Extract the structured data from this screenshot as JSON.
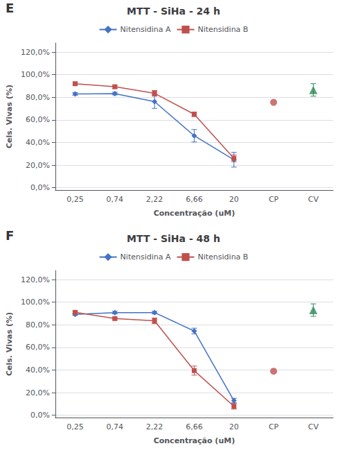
{
  "chart_data": [
    {
      "type": "line",
      "title": "MTT - SiHa - 24 h",
      "annotations": [
        "E"
      ],
      "categories": [
        "0,25",
        "0,74",
        "2,22",
        "6,66",
        "20",
        "CP",
        "CV"
      ],
      "xlabel": "Concentração (uM)",
      "ylabel": "Cels. Vivas (%)",
      "series": [
        {
          "name": "Nitensidina A",
          "color": "#4472C4",
          "marker": "diamond",
          "values": [
            0.83,
            0.833,
            0.762,
            0.46,
            0.248,
            null,
            null
          ],
          "errors": [
            0.012,
            0.012,
            0.06,
            0.055,
            0.065,
            null,
            null
          ]
        },
        {
          "name": "Nitensidina B",
          "color": "#C0504D",
          "marker": "square",
          "values": [
            0.92,
            0.893,
            0.835,
            0.65,
            0.26,
            null,
            null
          ],
          "errors": [
            0.012,
            0.015,
            0.025,
            0.02,
            0.03,
            null,
            null
          ]
        },
        {
          "type": "scatter",
          "color": "#C0504D",
          "marker": "circle",
          "values": [
            null,
            null,
            null,
            null,
            null,
            0.755,
            null
          ]
        },
        {
          "type": "scatter",
          "color": "#2E8B57",
          "marker": "triangle",
          "values": [
            null,
            null,
            null,
            null,
            null,
            null,
            0.865
          ],
          "errors": [
            null,
            null,
            null,
            null,
            null,
            null,
            0.055
          ]
        }
      ],
      "ylim": [
        -0.02,
        1.28
      ],
      "yticks": [
        {
          "value": 0.0,
          "label": "0,0%"
        },
        {
          "value": 0.2,
          "label": "20,0%"
        },
        {
          "value": 0.4,
          "label": "40,0%"
        },
        {
          "value": 0.6,
          "label": "60,0%"
        },
        {
          "value": 0.8,
          "label": "80,0%"
        },
        {
          "value": 1.0,
          "label": "100,0%"
        },
        {
          "value": 1.2,
          "label": "120,0%"
        }
      ],
      "grid": true,
      "legend": "top"
    },
    {
      "type": "line",
      "title": "MTT - SiHa - 48 h",
      "annotations": [
        "F"
      ],
      "categories": [
        "0,25",
        "0,74",
        "2,22",
        "6,66",
        "20",
        "CP",
        "CV"
      ],
      "xlabel": "Concentração (uM)",
      "ylabel": "Cels. Vivas (%)",
      "series": [
        {
          "name": "Nitensidina A",
          "color": "#4472C4",
          "marker": "diamond",
          "values": [
            0.892,
            0.908,
            0.908,
            0.745,
            0.13,
            null,
            null
          ],
          "errors": [
            0.01,
            0.012,
            0.012,
            0.025,
            0.02,
            null,
            null
          ]
        },
        {
          "name": "Nitensidina B",
          "color": "#C0504D",
          "marker": "square",
          "values": [
            0.91,
            0.855,
            0.835,
            0.395,
            0.08,
            null,
            null
          ],
          "errors": [
            0.012,
            0.01,
            0.025,
            0.04,
            0.025,
            null,
            null
          ]
        },
        {
          "type": "scatter",
          "color": "#C0504D",
          "marker": "circle",
          "values": [
            null,
            null,
            null,
            null,
            null,
            0.39,
            null
          ]
        },
        {
          "type": "scatter",
          "color": "#2E8B57",
          "marker": "triangle",
          "values": [
            null,
            null,
            null,
            null,
            null,
            null,
            0.93
          ],
          "errors": [
            null,
            null,
            null,
            null,
            null,
            null,
            0.055
          ]
        }
      ],
      "ylim": [
        -0.02,
        1.28
      ],
      "yticks": [
        {
          "value": 0.0,
          "label": "0,0%"
        },
        {
          "value": 0.2,
          "label": "20,0%"
        },
        {
          "value": 0.4,
          "label": "40,0%"
        },
        {
          "value": 0.6,
          "label": "60,0%"
        },
        {
          "value": 0.8,
          "label": "80,0%"
        },
        {
          "value": 1.0,
          "label": "100,0%"
        },
        {
          "value": 1.2,
          "label": "120,0%"
        }
      ],
      "grid": true,
      "legend": "top"
    }
  ]
}
